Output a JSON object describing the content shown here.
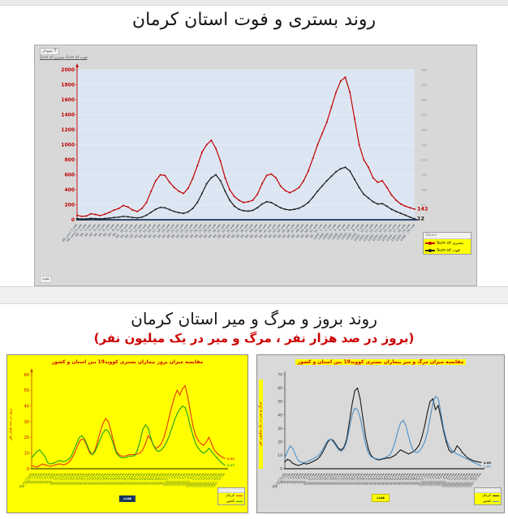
{
  "page": {
    "section1_title": "روند بستری و فوت استان کرمان",
    "section2_title": "روند بروز و مرگ و میر استان کرمان",
    "section2_subtitle": "(بروز در صد هزار نفر ، مرگ و میر در یک میلیون نفر)",
    "accent_red": "#cc0000",
    "highlight_yellow": "#ffff00",
    "plot_blue_bg": "#dce6f2",
    "panel_gray": "#d8d8d8"
  },
  "top_chart": {
    "toolbar_label": "نمودار T",
    "values_fields": "Sum of بستری   Sum of فوت",
    "axis_field_label": "هفته",
    "legend_title": "Values"
  },
  "chart_data": [
    {
      "type": "line",
      "title": "روند بستری و فوت استان کرمان",
      "ylim": [
        0,
        2000
      ],
      "ytick": 200,
      "y2lim": [
        0,
        500
      ],
      "y2tick": 50,
      "legend_position": "right",
      "grid": true,
      "categories": [
        "هفته 3 اسفند 98",
        "هفته 4 اسفند 98",
        "هفته 1 - 99",
        "هفته 2 - 99",
        "هفته 3 - 99",
        "هفته 4 - 99",
        "هفته 5 - 99",
        "هفته 6 - 99",
        "هفته 7 - 99",
        "هفته 8 - 99",
        "هفته 9 - 99",
        "هفته 10 - 99",
        "هفته 11 - 99",
        "هفته 12 - 99",
        "هفته 13 - 99",
        "هفته 14 - 99",
        "هفته 15 - 99",
        "هفته 16 - 99",
        "هفته 17 - 99",
        "هفته 18 - 99",
        "هفته 19 - 99",
        "هفته 20 - 99",
        "هفته 21 - 99",
        "هفته 22 - 99",
        "هفته 23 - 99",
        "هفته 24 - 99",
        "هفته 25 - 99",
        "هفته 26 - 99",
        "هفته 27 - 99",
        "هفته 28 - 99",
        "هفته 29 - 99",
        "هفته 30 - 99",
        "هفته 31 - 99",
        "هفته 32 - 99",
        "هفته 33 - 99",
        "هفته 34 - 99",
        "هفته 35 - 99",
        "هفته 36 - 99",
        "هفته 37 - 99",
        "هفته 38 - 99",
        "هفته 39 - 99",
        "هفته 40 - 99",
        "هفته 41 - 99",
        "هفته 42 - 99",
        "هفته 43 - 99",
        "هفته 44 - 99",
        "هفته 45 - 99",
        "هفته 46 - 99",
        "هفته 47 - 99",
        "هفته 48 - 99",
        "هفته 49 - 99",
        "هفته 50 - 99",
        "هفته 51 - 99",
        "هفته 52 - 99",
        "هفته 1 - 1400",
        "هفته 2 - 1400",
        "هفته 3 - 1400",
        "هفته 4 - 1400",
        "هفته 5 - 1400",
        "هفته 6 - 1400",
        "هفته 7 - 1400",
        "هفته 8 - 1400",
        "هفته 9 - 1400",
        "هفته 10 - 1400",
        "هفته 11 - 1400",
        "هفته 12 - 1400",
        "هفته 13 - 1400",
        "هفته 14 - 1400",
        "هفته 15 - 1400",
        "هفته 16 - 1400",
        "هفته 17 - 1400",
        "هفته 18 - 1400",
        "هفته 19 - 1400",
        "هفته 20 - 1400"
      ],
      "series": [
        {
          "name": "Sum of بستری",
          "color": "#c00000",
          "end_label": "142",
          "values": [
            60,
            45,
            50,
            80,
            70,
            55,
            75,
            100,
            130,
            150,
            190,
            170,
            130,
            110,
            150,
            230,
            380,
            520,
            600,
            590,
            500,
            430,
            380,
            350,
            420,
            550,
            720,
            900,
            1000,
            1060,
            950,
            780,
            560,
            400,
            310,
            260,
            230,
            240,
            260,
            340,
            480,
            590,
            610,
            560,
            450,
            390,
            360,
            390,
            430,
            520,
            650,
            820,
            1000,
            1150,
            1300,
            1500,
            1700,
            1850,
            1900,
            1700,
            1350,
            1000,
            800,
            700,
            560,
            500,
            520,
            430,
            330,
            260,
            210,
            180,
            160,
            142
          ]
        },
        {
          "name": "Sum of فوت",
          "color": "#1a1a1a",
          "end_label": "12",
          "values": [
            15,
            10,
            12,
            18,
            15,
            12,
            16,
            22,
            30,
            35,
            45,
            40,
            30,
            25,
            35,
            60,
            100,
            140,
            165,
            160,
            135,
            110,
            95,
            85,
            105,
            150,
            230,
            350,
            480,
            560,
            600,
            520,
            380,
            260,
            180,
            140,
            120,
            115,
            125,
            160,
            210,
            240,
            230,
            195,
            160,
            140,
            130,
            140,
            155,
            185,
            230,
            300,
            380,
            450,
            520,
            580,
            640,
            680,
            700,
            650,
            540,
            430,
            340,
            290,
            240,
            210,
            215,
            180,
            140,
            110,
            85,
            60,
            35,
            12
          ]
        }
      ]
    },
    {
      "type": "line",
      "title": "مقایسه میزان بروز بیماران بستری کووید19 بین استان و کشور",
      "ylabel": "بروز در صد هزار نفر",
      "xlabel": "هفته",
      "ylim": [
        0,
        60
      ],
      "ytick": 10,
      "legend_position": "bottom-right",
      "grid": false,
      "series": [
        {
          "name": "کرمان",
          "color": "#e53813",
          "end_label": "6.55",
          "values": [
            2,
            1.5,
            1,
            2,
            3,
            2.5,
            2,
            1.5,
            2,
            2.5,
            3,
            3,
            2.5,
            3,
            4,
            6,
            9,
            13,
            17,
            19,
            18,
            14,
            10,
            9,
            12,
            18,
            24,
            29,
            32,
            30,
            24,
            17,
            11,
            9,
            8,
            8,
            8.5,
            9,
            9,
            9,
            9.5,
            10,
            12,
            16,
            21,
            19,
            15,
            13,
            14,
            16,
            20,
            26,
            33,
            40,
            46,
            50,
            47,
            51,
            53,
            46,
            36,
            27,
            21,
            18,
            16,
            15,
            17,
            20,
            16,
            12,
            10,
            8.5,
            7.5,
            6.55
          ]
        },
        {
          "name": "کشور",
          "color": "#20a020",
          "end_label": "2.27",
          "values": [
            7,
            9,
            11,
            12,
            10,
            8,
            4,
            3,
            3.5,
            4,
            5,
            5,
            4.5,
            5,
            6,
            8,
            12,
            16,
            20,
            21,
            19,
            15,
            11,
            9,
            11,
            15,
            19,
            23,
            25,
            24,
            20,
            15,
            10,
            8,
            7,
            7,
            7.5,
            8,
            8,
            8.5,
            12,
            18,
            25,
            28,
            26,
            20,
            15,
            12,
            11,
            12,
            14,
            17,
            21,
            26,
            31,
            35,
            38,
            40,
            39,
            34,
            27,
            21,
            16,
            13,
            11,
            10,
            11,
            13,
            11,
            9,
            7,
            5,
            3.5,
            2.27
          ]
        }
      ]
    },
    {
      "type": "line",
      "title": "مقایسه میزان مرگ و میر بیماران بستری کووید19 بین استان و کشور",
      "ylabel": "مرگ و میر در یک میلیون نفر",
      "xlabel": "هفته",
      "ylim": [
        0,
        70
      ],
      "ytick": 10,
      "legend_position": "bottom-right",
      "grid": false,
      "series": [
        {
          "name": "کرمان",
          "color": "#1a1a1a",
          "end_label": "4.66",
          "values": [
            5,
            7,
            6,
            4,
            3,
            2.5,
            3,
            4,
            3.5,
            4,
            5,
            6,
            7,
            9,
            12,
            16,
            20,
            22,
            21,
            18,
            15,
            14,
            16,
            22,
            35,
            48,
            58,
            60,
            52,
            38,
            24,
            15,
            10,
            8,
            7,
            6.5,
            7,
            7.5,
            8,
            8,
            9,
            10,
            12,
            14,
            13,
            12,
            11,
            12,
            13,
            15,
            18,
            24,
            32,
            42,
            50,
            52,
            44,
            47,
            38,
            28,
            20,
            14,
            12,
            13,
            17,
            15,
            12,
            10,
            8,
            7,
            6,
            5.5,
            5,
            4.66
          ]
        },
        {
          "name": "کشور",
          "color": "#4a8fc7",
          "end_label": "1.95",
          "values": [
            8,
            13,
            17,
            15,
            10,
            6,
            5,
            4.5,
            5,
            6,
            7,
            8,
            9,
            11,
            14,
            18,
            21,
            22,
            20,
            17,
            14,
            13,
            15,
            20,
            30,
            40,
            45,
            44,
            38,
            28,
            18,
            12,
            9,
            8,
            7.5,
            7,
            7.5,
            8,
            9,
            10,
            14,
            20,
            28,
            34,
            36,
            32,
            24,
            17,
            13,
            12,
            13,
            16,
            20,
            27,
            38,
            48,
            54,
            52,
            42,
            30,
            22,
            17,
            14,
            12,
            11,
            10,
            9,
            8,
            7,
            6,
            5,
            4,
            3,
            1.95
          ]
        }
      ]
    }
  ]
}
